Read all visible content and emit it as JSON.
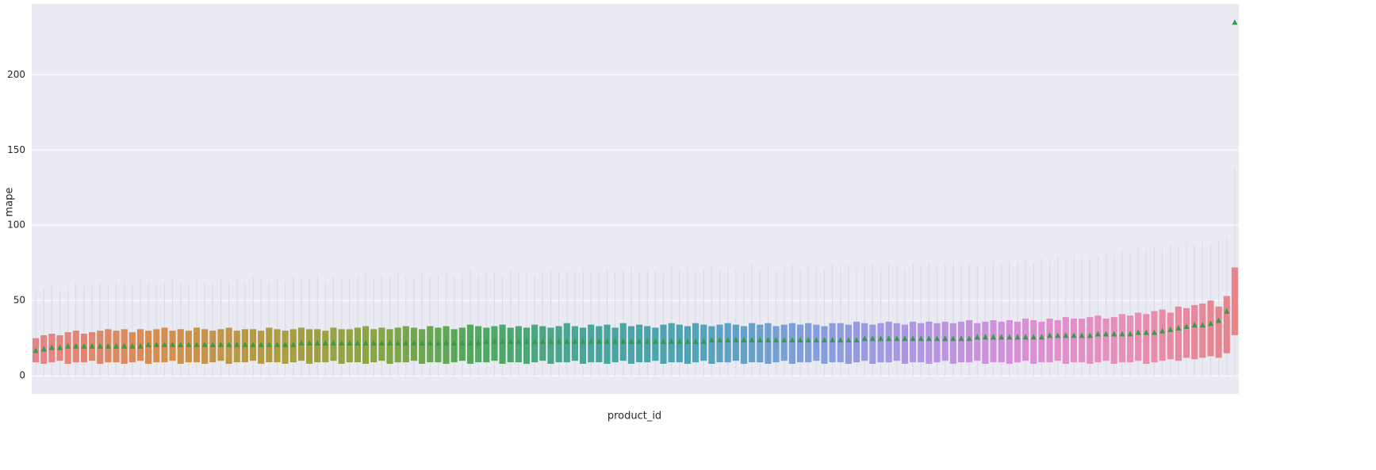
{
  "chart_data": {
    "type": "box",
    "x_label": "product_id",
    "y_label": "mape",
    "ylim": [
      -12,
      247
    ],
    "yticks": [
      0,
      50,
      100,
      150,
      200
    ],
    "grid": true,
    "palette": [
      "#e8838a",
      "#d98c52",
      "#b59a42",
      "#8fa542",
      "#52a85c",
      "#48a696",
      "#4ea3b8",
      "#7d9fdc",
      "#ad97e4",
      "#d88fd8",
      "#e88fb8",
      "#e8838a"
    ],
    "whisker_color": "#dcdce4",
    "mean_color": "#3a9a4a",
    "categories": [
      null,
      null,
      null,
      null,
      null,
      null,
      null,
      null,
      null,
      null,
      null,
      null,
      null,
      null,
      null,
      null,
      null,
      null,
      null,
      null,
      null,
      null,
      null,
      null,
      null,
      null,
      null,
      null,
      null,
      null,
      null,
      null,
      null,
      null,
      null,
      null,
      null,
      null,
      null,
      null,
      null,
      null,
      null,
      null,
      null,
      null,
      null,
      null,
      null,
      null,
      null,
      null,
      null,
      null,
      null,
      null,
      null,
      null,
      null,
      null,
      null,
      null,
      null,
      null,
      null,
      null,
      null,
      null,
      null,
      null,
      null,
      null,
      null,
      null,
      null,
      null,
      null,
      null,
      null,
      null,
      null,
      null,
      null,
      null,
      null,
      null,
      null,
      null,
      null,
      null,
      null,
      null,
      null,
      null,
      null,
      null,
      null,
      null,
      null,
      null,
      null,
      null,
      null,
      null,
      null,
      null,
      null,
      null,
      null,
      null,
      null,
      null,
      null,
      null,
      null,
      null,
      null,
      null,
      null,
      null,
      null,
      null,
      null,
      null,
      null,
      null,
      null,
      null,
      null,
      null,
      null,
      null,
      null,
      null,
      null,
      null,
      null,
      null,
      null,
      null,
      null,
      null,
      null,
      null,
      null,
      null,
      null,
      null,
      null,
      null
    ],
    "q1": [
      9,
      8,
      9,
      10,
      8,
      9,
      9,
      10,
      8,
      9,
      9,
      8,
      9,
      10,
      8,
      9,
      9,
      10,
      8,
      9,
      9,
      8,
      9,
      10,
      8,
      9,
      9,
      10,
      8,
      9,
      9,
      8,
      9,
      10,
      8,
      9,
      9,
      10,
      8,
      9,
      9,
      8,
      9,
      10,
      8,
      9,
      9,
      10,
      8,
      9,
      9,
      8,
      9,
      10,
      8,
      9,
      9,
      10,
      8,
      9,
      9,
      8,
      9,
      10,
      8,
      9,
      9,
      10,
      8,
      9,
      9,
      8,
      9,
      10,
      8,
      9,
      9,
      10,
      8,
      9,
      9,
      8,
      9,
      10,
      8,
      9,
      9,
      10,
      8,
      9,
      9,
      8,
      9,
      10,
      8,
      9,
      9,
      10,
      8,
      9,
      9,
      8,
      9,
      10,
      8,
      9,
      9,
      10,
      8,
      9,
      9,
      8,
      9,
      10,
      8,
      9,
      9,
      10,
      8,
      9,
      9,
      8,
      9,
      10,
      8,
      9,
      9,
      10,
      8,
      9,
      9,
      8,
      9,
      10,
      8,
      9,
      9,
      10,
      8,
      9,
      10,
      11,
      10,
      12,
      11,
      12,
      13,
      12,
      15,
      27
    ],
    "q3": [
      25,
      27,
      28,
      27,
      29,
      30,
      28,
      29,
      30,
      31,
      30,
      31,
      29,
      31,
      30,
      31,
      32,
      30,
      31,
      30,
      32,
      31,
      30,
      31,
      32,
      30,
      31,
      31,
      30,
      32,
      31,
      30,
      31,
      32,
      31,
      31,
      30,
      32,
      31,
      31,
      32,
      33,
      31,
      32,
      31,
      32,
      33,
      32,
      31,
      33,
      32,
      33,
      31,
      32,
      34,
      33,
      32,
      33,
      34,
      32,
      33,
      32,
      34,
      33,
      32,
      33,
      35,
      33,
      32,
      34,
      33,
      34,
      32,
      35,
      33,
      34,
      33,
      32,
      34,
      35,
      34,
      33,
      35,
      34,
      33,
      34,
      35,
      34,
      33,
      35,
      34,
      35,
      33,
      34,
      35,
      34,
      35,
      34,
      33,
      35,
      35,
      34,
      36,
      35,
      34,
      35,
      36,
      35,
      34,
      36,
      35,
      36,
      35,
      36,
      35,
      36,
      37,
      35,
      36,
      37,
      36,
      37,
      36,
      38,
      37,
      36,
      38,
      37,
      39,
      38,
      38,
      39,
      40,
      38,
      39,
      41,
      40,
      42,
      41,
      43,
      44,
      42,
      46,
      45,
      47,
      48,
      50,
      46,
      53,
      72
    ],
    "whisker_low": [
      0,
      0,
      0,
      0,
      0,
      0,
      0,
      0,
      0,
      0,
      0,
      0,
      0,
      0,
      0,
      0,
      0,
      0,
      0,
      0,
      0,
      0,
      0,
      0,
      0,
      0,
      0,
      0,
      0,
      0,
      0,
      0,
      0,
      0,
      0,
      0,
      0,
      0,
      0,
      0,
      0,
      0,
      0,
      0,
      0,
      0,
      0,
      0,
      0,
      0,
      0,
      0,
      0,
      0,
      0,
      0,
      0,
      0,
      0,
      0,
      0,
      0,
      0,
      0,
      0,
      0,
      0,
      0,
      0,
      0,
      0,
      0,
      0,
      0,
      0,
      0,
      0,
      0,
      0,
      0,
      0,
      0,
      0,
      0,
      0,
      0,
      0,
      0,
      0,
      0,
      0,
      0,
      0,
      0,
      0,
      0,
      0,
      0,
      0,
      0,
      0,
      0,
      0,
      0,
      0,
      0,
      0,
      0,
      0,
      0,
      0,
      0,
      0,
      0,
      0,
      0,
      0,
      0,
      0,
      0,
      0,
      0,
      0,
      0,
      0,
      0,
      0,
      0,
      0,
      0,
      0,
      0,
      0,
      0,
      0,
      0,
      0,
      0,
      0,
      0,
      0,
      0,
      0,
      0,
      0,
      0,
      0,
      0,
      0,
      0
    ],
    "whisker_high": [
      55,
      58,
      60,
      57,
      59,
      62,
      60,
      61,
      63,
      60,
      62,
      63,
      61,
      64,
      62,
      60,
      63,
      65,
      62,
      61,
      64,
      62,
      63,
      65,
      63,
      64,
      62,
      66,
      64,
      63,
      65,
      63,
      66,
      64,
      65,
      67,
      63,
      66,
      65,
      64,
      66,
      68,
      65,
      67,
      66,
      69,
      67,
      65,
      68,
      66,
      67,
      69,
      66,
      68,
      70,
      67,
      69,
      68,
      66,
      70,
      68,
      70,
      67,
      69,
      71,
      68,
      70,
      69,
      72,
      68,
      69,
      71,
      68,
      70,
      72,
      69,
      71,
      70,
      68,
      73,
      70,
      72,
      69,
      71,
      73,
      70,
      72,
      71,
      69,
      74,
      71,
      73,
      70,
      72,
      74,
      71,
      73,
      72,
      70,
      74,
      72,
      74,
      71,
      73,
      75,
      72,
      74,
      73,
      71,
      75,
      73,
      75,
      72,
      74,
      76,
      73,
      75,
      74,
      72,
      76,
      74,
      76,
      75,
      77,
      75,
      78,
      76,
      79,
      77,
      80,
      78,
      80,
      79,
      81,
      80,
      83,
      82,
      85,
      84,
      86,
      85,
      87,
      86,
      88,
      87,
      89,
      88,
      90,
      92,
      138
    ],
    "mean": [
      17,
      18,
      19,
      19,
      20,
      20,
      20,
      20,
      20,
      20,
      20,
      20,
      20,
      20,
      21,
      21,
      21,
      21,
      21,
      21,
      21,
      21,
      21,
      21,
      21,
      21,
      21,
      21,
      21,
      21,
      21,
      21,
      21,
      22,
      22,
      22,
      22,
      22,
      22,
      22,
      22,
      22,
      22,
      22,
      22,
      22,
      22,
      22,
      22,
      22,
      22,
      22,
      22,
      22,
      22,
      22,
      23,
      23,
      23,
      23,
      23,
      23,
      23,
      23,
      23,
      23,
      23,
      23,
      23,
      23,
      23,
      23,
      23,
      23,
      23,
      23,
      23,
      23,
      23,
      23,
      23,
      23,
      23,
      23,
      24,
      24,
      24,
      24,
      24,
      24,
      24,
      24,
      24,
      24,
      24,
      24,
      24,
      24,
      24,
      24,
      24,
      24,
      24,
      25,
      25,
      25,
      25,
      25,
      25,
      25,
      25,
      25,
      25,
      25,
      25,
      25,
      25,
      26,
      26,
      26,
      26,
      26,
      26,
      26,
      26,
      26,
      27,
      27,
      27,
      27,
      27,
      27,
      28,
      28,
      28,
      28,
      28,
      29,
      29,
      29,
      30,
      31,
      32,
      33,
      34,
      34,
      35,
      37,
      43,
      235
    ]
  }
}
